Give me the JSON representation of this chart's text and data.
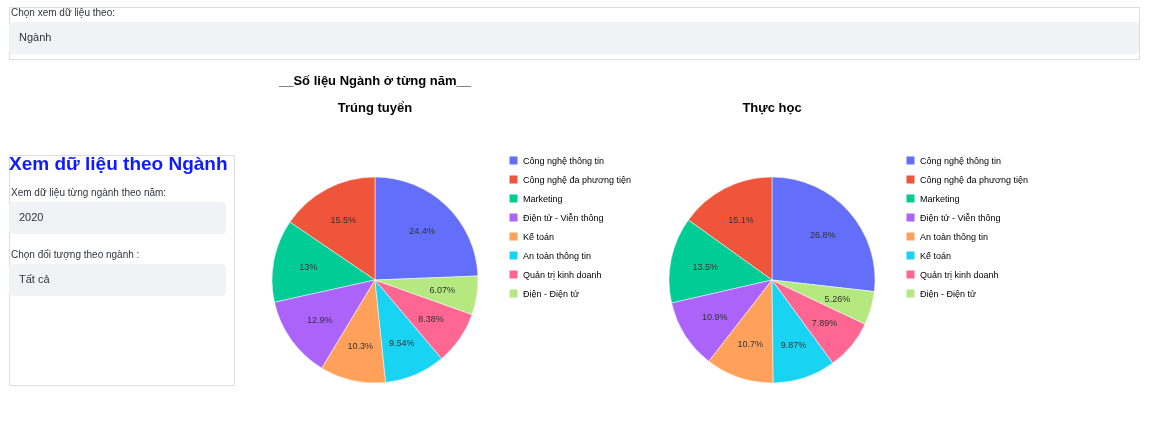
{
  "chart_data": [
    {
      "type": "other",
      "annotations": [
        "Chọn xem dữ liệu theo:",
        "Ngành"
      ]
    },
    {
      "type": "other",
      "title": "Xem dữ liệu theo Ngành",
      "annotations": [
        "Xem dữ liệu từng ngành theo năm:",
        "2020",
        "Chọn đối tượng theo ngành :",
        "Tất cả"
      ]
    },
    {
      "type": "pie",
      "title": "__Số liệu Ngành ở từng năm__",
      "subtitle": "Trúng tuyển",
      "legend": "right",
      "categories": [
        "Công nghệ thông tin",
        "Công nghệ đa phương tiện",
        "Marketing",
        "Điện tử - Viễn thông",
        "Kế toán",
        "An toàn thông tin",
        "Quản trị kinh doanh",
        "Điện - Điện tử"
      ],
      "values": [
        24.4,
        15.5,
        13,
        12.9,
        10.3,
        9.54,
        8.38,
        6.07
      ],
      "value_labels": [
        "24.4%",
        "15.5%",
        "13%",
        "12.9%",
        "10.3%",
        "9.54%",
        "8.38%",
        "6.07%"
      ],
      "colors": [
        "#636efa",
        "#ef553b",
        "#00cc96",
        "#ab63fa",
        "#ffa15a",
        "#19d3f3",
        "#ff6692",
        "#b6e880"
      ]
    },
    {
      "type": "pie",
      "title": "Thực học",
      "legend": "right",
      "categories": [
        "Công nghệ thông tin",
        "Công nghệ đa phương tiện",
        "Marketing",
        "Điện tử - Viễn thông",
        "An toàn thông tin",
        "Kế toán",
        "Quản trị kinh doanh",
        "Điện - Điện tử"
      ],
      "values": [
        26.8,
        15.1,
        13.5,
        10.9,
        10.7,
        9.87,
        7.89,
        5.26
      ],
      "value_labels": [
        "26.8%",
        "15.1%",
        "13.5%",
        "10.9%",
        "10.7%",
        "9.87%",
        "7.89%",
        "5.26%"
      ],
      "colors": [
        "#636efa",
        "#ef553b",
        "#00cc96",
        "#ab63fa",
        "#ffa15a",
        "#19d3f3",
        "#ff6692",
        "#b6e880"
      ]
    }
  ]
}
